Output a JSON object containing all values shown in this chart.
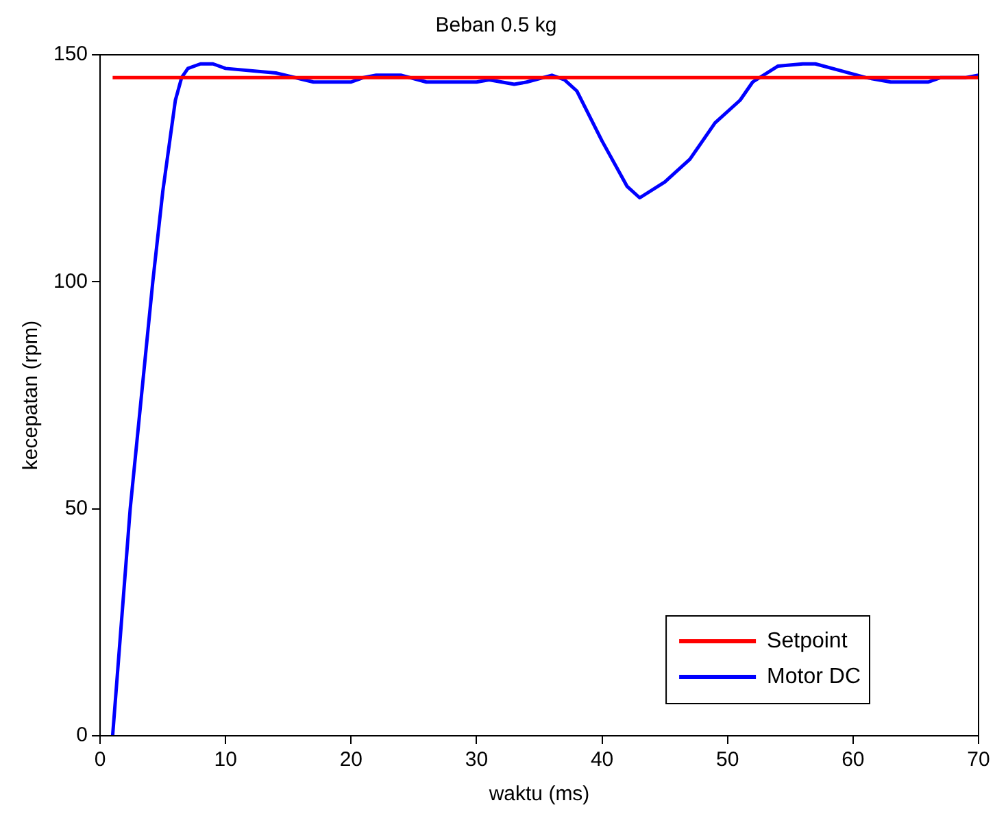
{
  "chart_data": {
    "type": "line",
    "title": "Beban 0.5 kg",
    "xlabel": "waktu (ms)",
    "ylabel": "kecepatan (rpm)",
    "xlim": [
      0,
      70
    ],
    "xticks": [
      0,
      10,
      20,
      30,
      40,
      50,
      60,
      70
    ],
    "ylim": [
      0,
      150
    ],
    "yticks": [
      0,
      50,
      100,
      150
    ],
    "grid": false,
    "legend": "bottom right",
    "marker": "none",
    "line_style": "solid",
    "series": [
      {
        "name": "Setpoint",
        "color": "#ff0000",
        "x": [
          1,
          70
        ],
        "values": [
          145,
          145
        ]
      },
      {
        "name": "Motor DC",
        "color": "#0000ff",
        "x": [
          1,
          2.4,
          4.2,
          5,
          6,
          6.5,
          7,
          8,
          9,
          10,
          14,
          17,
          20,
          21,
          22,
          24,
          26,
          30,
          31,
          33,
          34,
          36,
          37,
          38,
          40,
          42,
          43,
          45,
          47,
          49,
          51,
          52,
          54,
          56,
          57,
          59,
          61,
          63,
          66,
          67,
          69,
          70
        ],
        "values": [
          0,
          50,
          100,
          120,
          140,
          145,
          147,
          148,
          148,
          147,
          146,
          144,
          144,
          145,
          145.5,
          145.5,
          144,
          144,
          144.5,
          143.5,
          144,
          145.5,
          144.5,
          142,
          131,
          121,
          118.5,
          122,
          127,
          135,
          140,
          144,
          147.5,
          148,
          148,
          146.5,
          145,
          144,
          144,
          145,
          145,
          145.5
        ]
      }
    ]
  }
}
